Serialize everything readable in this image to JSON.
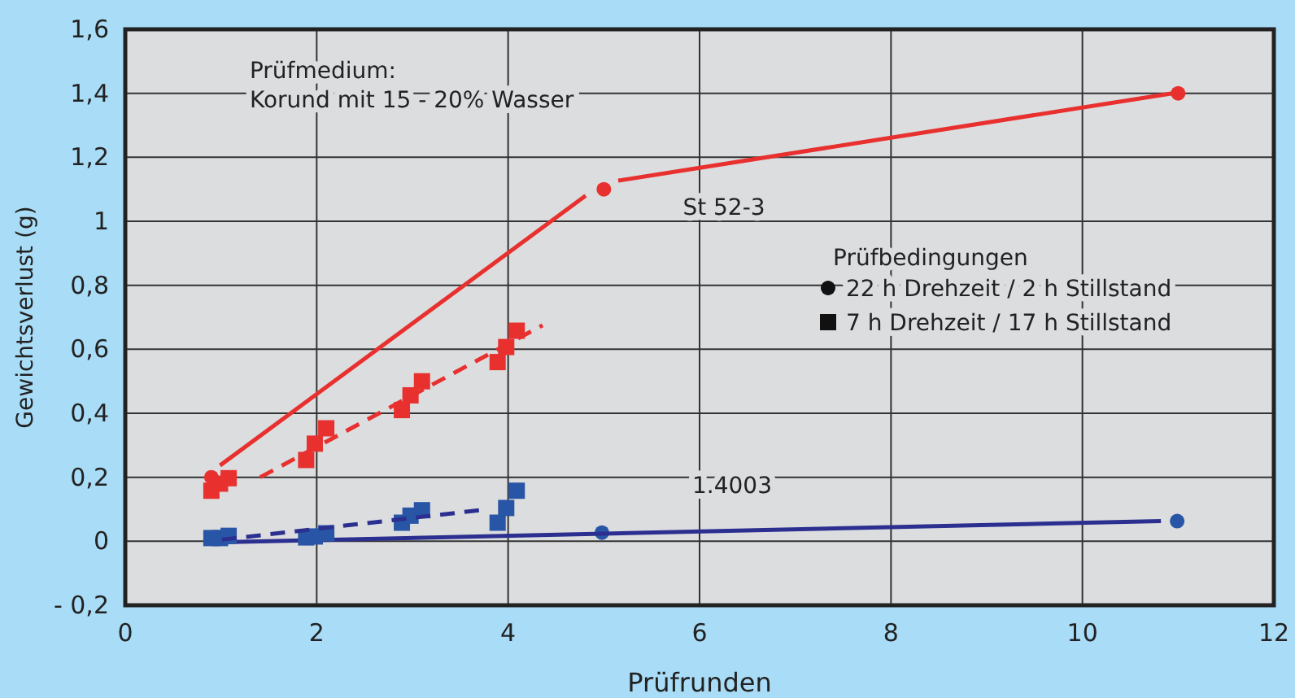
{
  "chart_data": {
    "type": "scatter",
    "xlabel": "Prüfrunden",
    "ylabel": "Gewichtsverlust (g)",
    "xlim": [
      0,
      12
    ],
    "xticks": [
      0,
      2,
      4,
      6,
      8,
      10,
      12
    ],
    "ylim": [
      -0.2,
      1.6
    ],
    "yticks": [
      {
        "value": -0.2,
        "label": "- 0,2"
      },
      0,
      {
        "value": 0.2,
        "label": "0,2"
      },
      {
        "value": 0.4,
        "label": "0,4"
      },
      {
        "value": 0.6,
        "label": "0,6"
      },
      {
        "value": 0.8,
        "label": "0,8"
      },
      1,
      {
        "value": 1.2,
        "label": "1,2"
      },
      {
        "value": 1.4,
        "label": "1,4"
      },
      {
        "value": 1.6,
        "label": "1,6"
      }
    ],
    "grid": true,
    "series": [
      {
        "marker": "circle",
        "color": "#e8312f",
        "x": [
          0.9,
          5,
          11
        ],
        "values": [
          0.2,
          1.1,
          1.4
        ]
      },
      {
        "type": "line",
        "line_style": "solid",
        "color": "#e8312f",
        "x": [
          0.99,
          4.81
        ],
        "values": [
          0.237,
          1.08
        ]
      },
      {
        "type": "line",
        "line_style": "solid",
        "color": "#e8312f",
        "x": [
          5.15,
          10.94
        ],
        "values": [
          1.127,
          1.4
        ]
      },
      {
        "marker": "square",
        "color": "#e8312f",
        "x": [
          0.9,
          0.99,
          1.08,
          1.89,
          1.98,
          2.1,
          2.89,
          2.98,
          3.1,
          3.89,
          3.98,
          4.09
        ],
        "values": [
          0.158,
          0.18,
          0.197,
          0.254,
          0.305,
          0.353,
          0.41,
          0.456,
          0.5,
          0.56,
          0.607,
          0.658
        ]
      },
      {
        "type": "line",
        "line_style": "dashed",
        "color": "#e8312f",
        "x": [
          1.41,
          4.36
        ],
        "values": [
          0.2,
          0.675
        ]
      },
      {
        "marker": "circle",
        "color": "#2855a6",
        "x": [
          4.98,
          10.99
        ],
        "values": [
          0.027,
          0.063
        ]
      },
      {
        "type": "line",
        "line_style": "solid",
        "color": "#2b2f8f",
        "x": [
          1.01,
          10.82
        ],
        "values": [
          -0.003,
          0.063
        ]
      },
      {
        "marker": "square",
        "color": "#2855a6",
        "x": [
          0.9,
          0.99,
          1.08,
          1.89,
          1.98,
          2.1,
          2.89,
          2.98,
          3.1,
          3.89,
          3.98,
          4.09
        ],
        "values": [
          0.01,
          0.01,
          0.017,
          0.012,
          0.015,
          0.025,
          0.058,
          0.08,
          0.097,
          0.058,
          0.104,
          0.158
        ]
      },
      {
        "type": "line",
        "line_style": "dashed",
        "color": "#2b2f8f",
        "x": [
          1.01,
          3.79
        ],
        "values": [
          0.005,
          0.1
        ]
      }
    ],
    "annotations": [
      "Prüfmedium:\nKorund mit 15 - 20% Wasser",
      "Prüfbedingungen",
      "22 h Drehzeit / 2 h Stillstand",
      "7 h Drehzeit / 17 h Stillstand",
      "St 52-3",
      "1.4003"
    ]
  }
}
